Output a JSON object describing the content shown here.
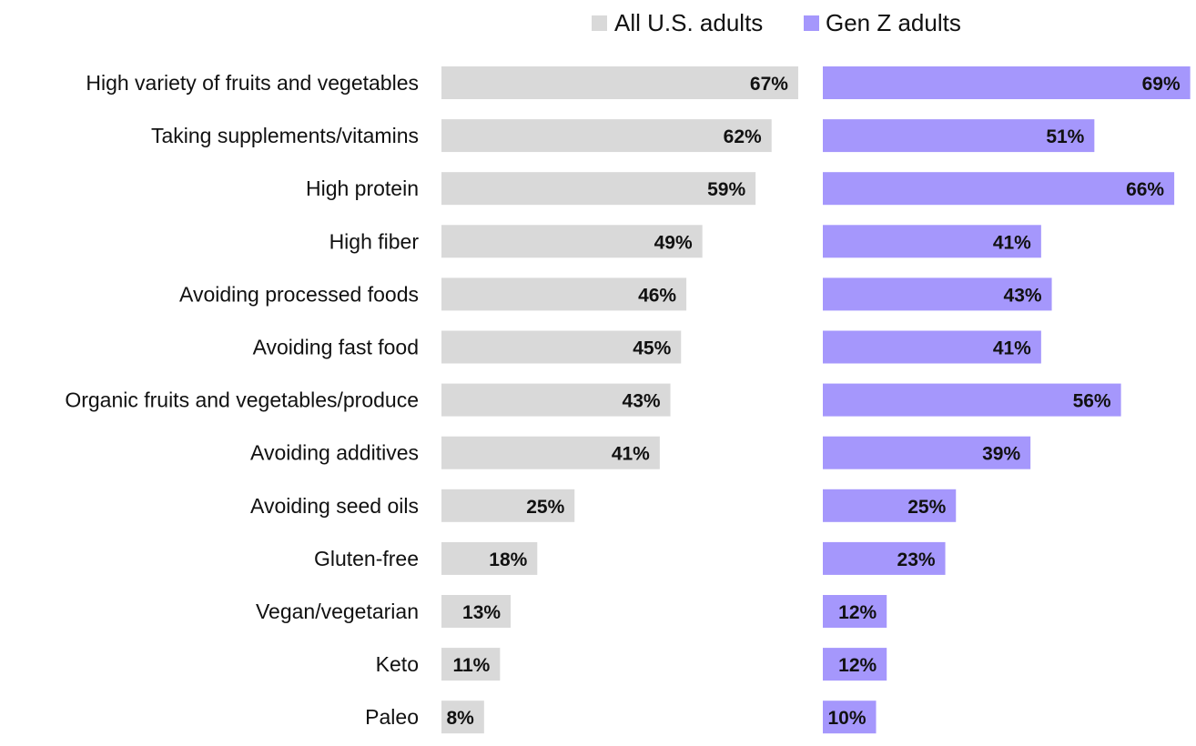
{
  "chart_data": {
    "type": "bar",
    "orientation": "horizontal",
    "title": "",
    "xlabel": "",
    "ylabel": "",
    "legend": "top",
    "grid": false,
    "xlim": [
      0,
      100
    ],
    "categories": [
      "High variety of fruits and vegetables",
      "Taking supplements/vitamins",
      "High protein",
      "High fiber",
      "Avoiding processed foods",
      "Avoiding fast food",
      "Organic fruits and vegetables/produce",
      "Avoiding additives",
      "Avoiding seed oils",
      "Gluten-free",
      "Vegan/vegetarian",
      "Keto",
      "Paleo"
    ],
    "series": [
      {
        "name": "All U.S. adults",
        "color": "#d9d9d9",
        "values": [
          67,
          62,
          59,
          49,
          46,
          45,
          43,
          41,
          25,
          18,
          13,
          11,
          8
        ],
        "labels": [
          "67%",
          "62%",
          "59%",
          "49%",
          "46%",
          "45%",
          "43%",
          "41%",
          "25%",
          "18%",
          "13%",
          "11%",
          "8%"
        ]
      },
      {
        "name": "Gen Z adults",
        "color": "#a597fc",
        "values": [
          69,
          51,
          66,
          41,
          43,
          41,
          56,
          39,
          25,
          23,
          12,
          12,
          10
        ],
        "labels": [
          "69%",
          "51%",
          "66%",
          "41%",
          "43%",
          "41%",
          "56%",
          "39%",
          "25%",
          "23%",
          "12%",
          "12%",
          "10%"
        ]
      }
    ]
  }
}
